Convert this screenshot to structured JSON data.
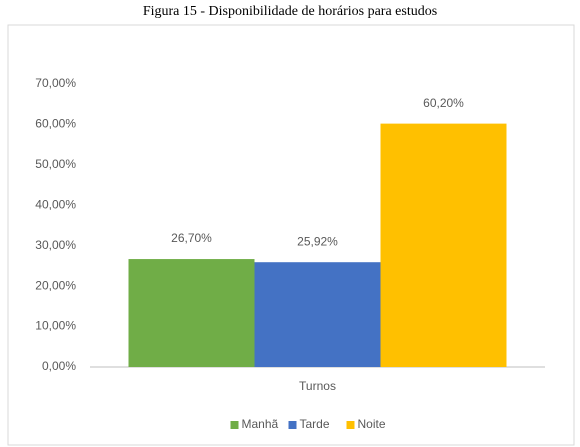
{
  "chart_data": {
    "type": "bar",
    "title": "Figura 15 - Disponibilidade de horários para estudos",
    "categories": [
      "Turnos"
    ],
    "series": [
      {
        "name": "Manhã",
        "color": "#70ad47",
        "values": [
          26.7
        ],
        "value_labels": [
          "26,70%"
        ]
      },
      {
        "name": "Tarde",
        "color": "#4472c4",
        "values": [
          25.92
        ],
        "value_labels": [
          "25,92%"
        ]
      },
      {
        "name": "Noite",
        "color": "#ffc000",
        "values": [
          60.2
        ],
        "value_labels": [
          "60,20%"
        ]
      }
    ],
    "ylim": [
      0,
      70
    ],
    "yticks": [
      {
        "value": 0,
        "label": "0,00%"
      },
      {
        "value": 10,
        "label": "10,00%"
      },
      {
        "value": 20,
        "label": "20,00%"
      },
      {
        "value": 30,
        "label": "30,00%"
      },
      {
        "value": 40,
        "label": "40,00%"
      },
      {
        "value": 50,
        "label": "50,00%"
      },
      {
        "value": 60,
        "label": "60,00%"
      },
      {
        "value": 70,
        "label": "70,00%"
      }
    ],
    "grid": false,
    "legend": "bottom"
  }
}
